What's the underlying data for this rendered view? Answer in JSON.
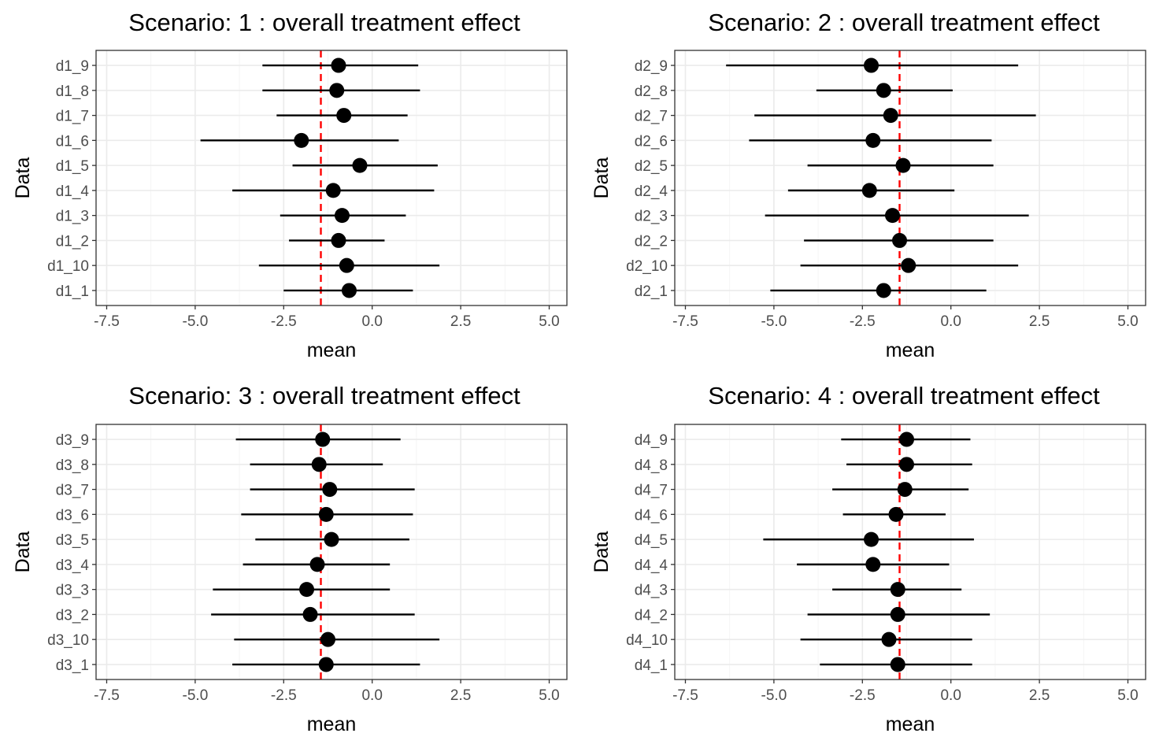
{
  "chart_data": [
    {
      "type": "scatter",
      "title": "Scenario: 1 : overall treatment effect",
      "xlabel": "mean",
      "ylabel": "Data",
      "xlim": [
        -7.8,
        5.5
      ],
      "xticks": [
        "-7.5",
        "-5.0",
        "-2.5",
        "0.0",
        "2.5",
        "5.0"
      ],
      "reference_line": -1.45,
      "categories": [
        "d1_1",
        "d1_10",
        "d1_2",
        "d1_3",
        "d1_4",
        "d1_5",
        "d1_6",
        "d1_7",
        "d1_8",
        "d1_9"
      ],
      "mean": [
        -0.65,
        -0.72,
        -0.95,
        -0.85,
        -1.1,
        -0.35,
        -2.0,
        -0.8,
        -1.0,
        -0.95
      ],
      "lower": [
        -2.5,
        -3.2,
        -2.35,
        -2.6,
        -3.95,
        -2.25,
        -4.85,
        -2.7,
        -3.1,
        -3.1
      ],
      "upper": [
        1.15,
        1.9,
        0.35,
        0.95,
        1.75,
        1.85,
        0.75,
        1.0,
        1.35,
        1.3
      ],
      "grid": true
    },
    {
      "type": "scatter",
      "title": "Scenario: 2 : overall treatment effect",
      "xlabel": "mean",
      "ylabel": "Data",
      "xlim": [
        -7.8,
        5.5
      ],
      "xticks": [
        "-7.5",
        "-5.0",
        "-2.5",
        "0.0",
        "2.5",
        "5.0"
      ],
      "reference_line": -1.45,
      "categories": [
        "d2_1",
        "d2_10",
        "d2_2",
        "d2_3",
        "d2_4",
        "d2_5",
        "d2_6",
        "d2_7",
        "d2_8",
        "d2_9"
      ],
      "mean": [
        -1.9,
        -1.2,
        -1.45,
        -1.65,
        -2.3,
        -1.35,
        -2.2,
        -1.7,
        -1.9,
        -2.25
      ],
      "lower": [
        -5.1,
        -4.25,
        -4.15,
        -5.25,
        -4.6,
        -4.05,
        -5.7,
        -5.55,
        -3.8,
        -6.35
      ],
      "upper": [
        1.0,
        1.9,
        1.2,
        2.2,
        0.1,
        1.2,
        1.15,
        2.4,
        0.05,
        1.9
      ],
      "grid": true
    },
    {
      "type": "scatter",
      "title": "Scenario: 3 : overall treatment effect",
      "xlabel": "mean",
      "ylabel": "Data",
      "xlim": [
        -7.8,
        5.5
      ],
      "xticks": [
        "-7.5",
        "-5.0",
        "-2.5",
        "0.0",
        "2.5",
        "5.0"
      ],
      "reference_line": -1.45,
      "categories": [
        "d3_1",
        "d3_10",
        "d3_2",
        "d3_3",
        "d3_4",
        "d3_5",
        "d3_6",
        "d3_7",
        "d3_8",
        "d3_9"
      ],
      "mean": [
        -1.3,
        -1.25,
        -1.75,
        -1.85,
        -1.55,
        -1.15,
        -1.3,
        -1.2,
        -1.5,
        -1.4
      ],
      "lower": [
        -3.95,
        -3.9,
        -4.55,
        -4.5,
        -3.65,
        -3.3,
        -3.7,
        -3.45,
        -3.45,
        -3.85
      ],
      "upper": [
        1.35,
        1.9,
        1.2,
        0.5,
        0.5,
        1.05,
        1.15,
        1.2,
        0.3,
        0.8
      ],
      "grid": true
    },
    {
      "type": "scatter",
      "title": "Scenario: 4 : overall treatment effect",
      "xlabel": "mean",
      "ylabel": "Data",
      "xlim": [
        -7.8,
        5.5
      ],
      "xticks": [
        "-7.5",
        "-5.0",
        "-2.5",
        "0.0",
        "2.5",
        "5.0"
      ],
      "reference_line": -1.45,
      "categories": [
        "d4_1",
        "d4_10",
        "d4_2",
        "d4_3",
        "d4_4",
        "d4_5",
        "d4_6",
        "d4_7",
        "d4_8",
        "d4_9"
      ],
      "mean": [
        -1.5,
        -1.75,
        -1.5,
        -1.5,
        -2.2,
        -2.25,
        -1.55,
        -1.3,
        -1.25,
        -1.25
      ],
      "lower": [
        -3.7,
        -4.25,
        -4.05,
        -3.35,
        -4.35,
        -5.3,
        -3.05,
        -3.35,
        -2.95,
        -3.1
      ],
      "upper": [
        0.6,
        0.6,
        1.1,
        0.3,
        -0.05,
        0.65,
        -0.15,
        0.5,
        0.6,
        0.55
      ],
      "grid": true
    }
  ],
  "colors": {
    "reference_line": "#ff0000",
    "points": "#000000",
    "intervals": "#000000",
    "tick_text": "#4d4d4d",
    "grid": "#ebebeb",
    "border": "#333333"
  }
}
